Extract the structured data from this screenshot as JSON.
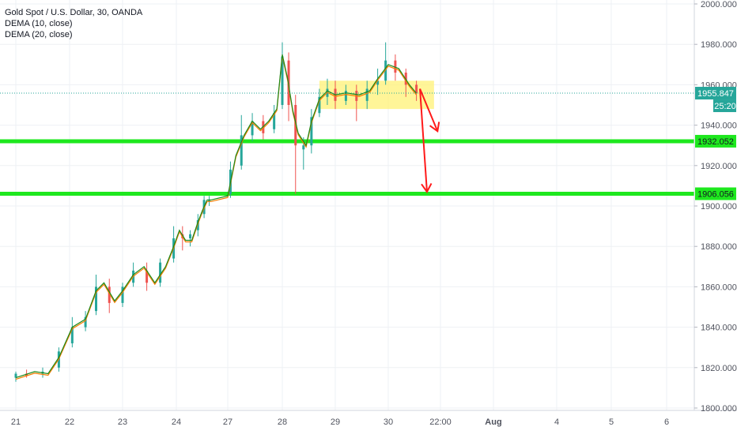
{
  "legend": {
    "title": "Gold Spot / U.S. Dollar, 30, OANDA",
    "indicator_1": "DEMA (10, close)",
    "indicator_2": "DEMA (20, close)"
  },
  "chart_data": {
    "type": "candlestick",
    "symbol": "Gold Spot / U.S. Dollar",
    "timeframe": "30",
    "source": "OANDA",
    "ylim": [
      1800,
      2000
    ],
    "y_ticks": [
      "2000.000",
      "1980.000",
      "1960.000",
      "1940.000",
      "1920.000",
      "1900.000",
      "1880.000",
      "1860.000",
      "1840.000",
      "1820.000",
      "1800.000"
    ],
    "x_ticks": [
      "21",
      "22",
      "23",
      "24",
      "27",
      "28",
      "29",
      "30",
      "22:00",
      "Aug",
      "4",
      "5",
      "6"
    ],
    "current_price": "1955.847",
    "countdown": "25:20",
    "horizontal_levels": [
      {
        "label": "1932.052",
        "value": 1932.052,
        "color": "#1ee81e"
      },
      {
        "label": "1906.056",
        "value": 1906.056,
        "color": "#1ee81e"
      }
    ],
    "highlight_zone": {
      "y_range": [
        1948,
        1962
      ],
      "x_range": [
        "28.7",
        "30.65"
      ],
      "color": "#fff176"
    },
    "price_path": [
      [
        "21.00",
        1815
      ],
      [
        "21.35",
        1818
      ],
      [
        "21.6",
        1817
      ],
      [
        "21.8",
        1825
      ],
      [
        "22.05",
        1840
      ],
      [
        "22.3",
        1844
      ],
      [
        "22.5",
        1858
      ],
      [
        "22.65",
        1862
      ],
      [
        "22.85",
        1853
      ],
      [
        "23.0",
        1858
      ],
      [
        "23.2",
        1866
      ],
      [
        "23.4",
        1870
      ],
      [
        "23.6",
        1862
      ],
      [
        "23.8",
        1870
      ],
      [
        "23.95",
        1880
      ],
      [
        "24.1",
        1888
      ],
      [
        "24.3",
        1883
      ],
      [
        "24.5",
        1883
      ],
      [
        "24.7",
        1892
      ],
      [
        "24.85",
        1898
      ],
      [
        "25.0",
        1903
      ],
      [
        "25.2",
        1903
      ],
      [
        "27.0",
        1905
      ],
      [
        "27.15",
        1925
      ],
      [
        "27.3",
        1935
      ],
      [
        "27.45",
        1942
      ],
      [
        "27.6",
        1938
      ],
      [
        "27.75",
        1942
      ],
      [
        "27.9",
        1948
      ],
      [
        "28.0",
        1975
      ],
      [
        "28.1",
        1963
      ],
      [
        "28.2",
        1947
      ],
      [
        "28.3",
        1936
      ],
      [
        "28.45",
        1930
      ],
      [
        "28.55",
        1942
      ],
      [
        "28.7",
        1953
      ],
      [
        "28.85",
        1957
      ],
      [
        "29.0",
        1955
      ],
      [
        "29.2",
        1956
      ],
      [
        "29.45",
        1955
      ],
      [
        "29.65",
        1957
      ],
      [
        "29.8",
        1963
      ],
      [
        "30.0",
        1970
      ],
      [
        "30.15",
        1968
      ],
      [
        "30.3",
        1960
      ],
      [
        "30.4",
        1955.8
      ]
    ],
    "candles": [
      {
        "x": "21.00",
        "o": 1815,
        "h": 1818,
        "l": 1813,
        "c": 1817
      },
      {
        "x": "21.2",
        "o": 1817,
        "h": 1819,
        "l": 1815,
        "c": 1816
      },
      {
        "x": "21.5",
        "o": 1817,
        "h": 1820,
        "l": 1815,
        "c": 1818
      },
      {
        "x": "21.8",
        "o": 1820,
        "h": 1830,
        "l": 1818,
        "c": 1828
      },
      {
        "x": "22.05",
        "o": 1832,
        "h": 1845,
        "l": 1830,
        "c": 1840
      },
      {
        "x": "22.3",
        "o": 1840,
        "h": 1848,
        "l": 1838,
        "c": 1845
      },
      {
        "x": "22.5",
        "o": 1848,
        "h": 1866,
        "l": 1846,
        "c": 1860
      },
      {
        "x": "22.75",
        "o": 1860,
        "h": 1864,
        "l": 1847,
        "c": 1852
      },
      {
        "x": "23.0",
        "o": 1852,
        "h": 1862,
        "l": 1850,
        "c": 1860
      },
      {
        "x": "23.2",
        "o": 1862,
        "h": 1872,
        "l": 1860,
        "c": 1868
      },
      {
        "x": "23.45",
        "o": 1868,
        "h": 1872,
        "l": 1858,
        "c": 1862
      },
      {
        "x": "23.7",
        "o": 1862,
        "h": 1874,
        "l": 1860,
        "c": 1872
      },
      {
        "x": "23.95",
        "o": 1874,
        "h": 1890,
        "l": 1872,
        "c": 1884
      },
      {
        "x": "24.2",
        "o": 1886,
        "h": 1890,
        "l": 1878,
        "c": 1884
      },
      {
        "x": "24.45",
        "o": 1884,
        "h": 1888,
        "l": 1880,
        "c": 1886
      },
      {
        "x": "24.7",
        "o": 1888,
        "h": 1896,
        "l": 1885,
        "c": 1893
      },
      {
        "x": "24.9",
        "o": 1896,
        "h": 1905,
        "l": 1894,
        "c": 1903
      },
      {
        "x": "25.1",
        "o": 1902,
        "h": 1905,
        "l": 1900,
        "c": 1903
      },
      {
        "x": "27.05",
        "o": 1906,
        "h": 1922,
        "l": 1904,
        "c": 1918
      },
      {
        "x": "27.25",
        "o": 1920,
        "h": 1945,
        "l": 1918,
        "c": 1935
      },
      {
        "x": "27.45",
        "o": 1935,
        "h": 1946,
        "l": 1932,
        "c": 1942
      },
      {
        "x": "27.65",
        "o": 1942,
        "h": 1945,
        "l": 1933,
        "c": 1936
      },
      {
        "x": "27.85",
        "o": 1938,
        "h": 1950,
        "l": 1936,
        "c": 1946
      },
      {
        "x": "28.0",
        "o": 1950,
        "h": 1981,
        "l": 1948,
        "c": 1974
      },
      {
        "x": "28.12",
        "o": 1972,
        "h": 1976,
        "l": 1942,
        "c": 1950
      },
      {
        "x": "28.25",
        "o": 1950,
        "h": 1955,
        "l": 1906,
        "c": 1930
      },
      {
        "x": "28.4",
        "o": 1928,
        "h": 1934,
        "l": 1918,
        "c": 1930
      },
      {
        "x": "28.55",
        "o": 1930,
        "h": 1948,
        "l": 1926,
        "c": 1944
      },
      {
        "x": "28.7",
        "o": 1946,
        "h": 1958,
        "l": 1944,
        "c": 1954
      },
      {
        "x": "28.85",
        "o": 1954,
        "h": 1963,
        "l": 1950,
        "c": 1958
      },
      {
        "x": "29.0",
        "o": 1958,
        "h": 1962,
        "l": 1948,
        "c": 1952
      },
      {
        "x": "29.2",
        "o": 1952,
        "h": 1960,
        "l": 1950,
        "c": 1957
      },
      {
        "x": "29.4",
        "o": 1957,
        "h": 1960,
        "l": 1942,
        "c": 1952
      },
      {
        "x": "29.6",
        "o": 1952,
        "h": 1962,
        "l": 1948,
        "c": 1958
      },
      {
        "x": "29.8",
        "o": 1960,
        "h": 1968,
        "l": 1955,
        "c": 1962
      },
      {
        "x": "29.95",
        "o": 1962,
        "h": 1981,
        "l": 1960,
        "c": 1972
      },
      {
        "x": "30.1",
        "o": 1972,
        "h": 1975,
        "l": 1962,
        "c": 1966
      },
      {
        "x": "30.25",
        "o": 1966,
        "h": 1968,
        "l": 1954,
        "c": 1960
      },
      {
        "x": "30.4",
        "o": 1960,
        "h": 1962,
        "l": 1952,
        "c": 1956
      }
    ],
    "annotations": [
      {
        "type": "arrow",
        "from": [
          "30.45",
          1958
        ],
        "to": [
          "30.7",
          1937
        ],
        "color": "#ff1a1a"
      },
      {
        "type": "arrow",
        "from": [
          "30.45",
          1958
        ],
        "to": [
          "30.55",
          1907
        ],
        "color": "#ff1a1a"
      }
    ],
    "colors": {
      "up": "#26a69a",
      "down": "#ef5350",
      "dema10": "#1b8a1b",
      "dema20": "#f57c00",
      "price_line": "#26a69a",
      "arrow": "#ff1a1a"
    }
  }
}
